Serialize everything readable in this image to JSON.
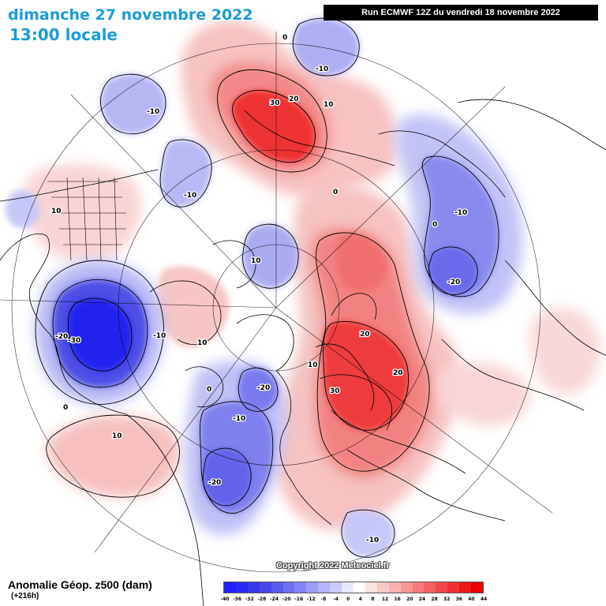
{
  "header": {
    "date": "dimanche 27 novembre 2022",
    "local_time": "13:00 locale",
    "run": "Run ECMWF 12Z du vendredi 18 novembre 2022"
  },
  "footer": {
    "title": "Anomalie Géop. z500 (dam)",
    "lead": "(+216h)",
    "copyright": "Copyright 2022 Meteociel.fr"
  },
  "legend": {
    "labels": [
      "-40",
      "-36",
      "-32",
      "-28",
      "-24",
      "-20",
      "-16",
      "-12",
      "-8",
      "-4",
      "0",
      "4",
      "8",
      "12",
      "16",
      "20",
      "24",
      "28",
      "32",
      "36",
      "40",
      "44"
    ],
    "colors": [
      "#2020ff",
      "#2a2af2",
      "#3636ec",
      "#4848e8",
      "#5a5ae8",
      "#6e6ef0",
      "#8484f4",
      "#9c9cf6",
      "#b4b4f8",
      "#cacafa",
      "#e6e6fc",
      "#ffffff",
      "#fde0e0",
      "#fac8c8",
      "#f8b0b0",
      "#f69696",
      "#f47c7c",
      "#f26262",
      "#f04848",
      "#ee3030",
      "#ec1818",
      "#e80000"
    ]
  },
  "map": {
    "colors": {
      "neg_strong": "#2b2bf0",
      "neg_mid": "#7474ee",
      "neg_light": "#c2c2f6",
      "pos_light": "#f6c8c8",
      "pos_mid": "#f07e7e",
      "pos_strong": "#ec2020"
    },
    "contour_labels": [
      "0",
      "-10",
      "30",
      "20",
      "10",
      "-10",
      "-10",
      "10",
      "0",
      "-10",
      "-20",
      "10",
      "0",
      "-20",
      "-30",
      "-10",
      "10",
      "20",
      "10",
      "-20",
      "30",
      "20",
      "0",
      "-10",
      "10",
      "-20",
      "-10",
      "0"
    ]
  }
}
